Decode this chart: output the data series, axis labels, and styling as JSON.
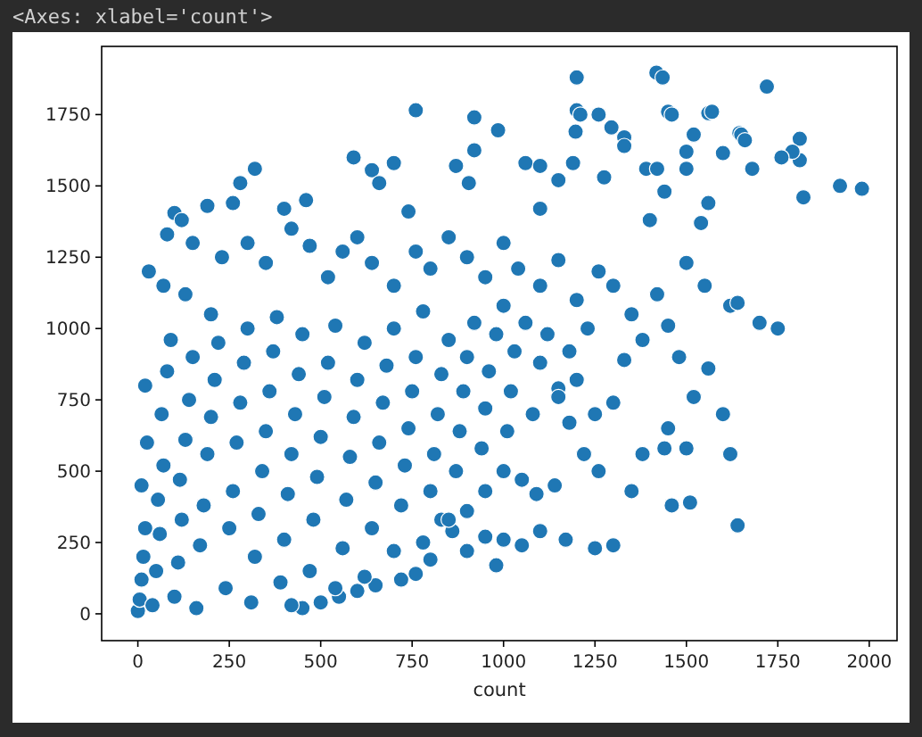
{
  "chart_data": {
    "type": "scatter",
    "annotations": [
      "<Axes: xlabel='count'>"
    ],
    "xlabel": "count",
    "xlim": [
      -99,
      2076
    ],
    "ylim": [
      -94,
      1989
    ],
    "xticks": [
      0,
      250,
      500,
      750,
      1000,
      1250,
      1500,
      1750,
      2000
    ],
    "yticks": [
      0,
      250,
      500,
      750,
      1000,
      1250,
      1500,
      1750
    ],
    "grid": false,
    "marker": "circle",
    "series": [
      {
        "color": "#1f77b4",
        "x": [
          1418,
          1435,
          1200,
          1720,
          760,
          1200,
          1210,
          1260,
          1450,
          1460,
          1560,
          1570,
          920,
          1295,
          1197,
          1645,
          985,
          1330,
          1650,
          1660,
          590,
          1520,
          1330,
          1810,
          920,
          1390,
          1420,
          1500,
          1810,
          1790,
          1760,
          1600,
          1680,
          280,
          320,
          640,
          660,
          700,
          905,
          870,
          1060,
          1100,
          1150,
          1190,
          1275,
          1440,
          1920,
          1980,
          1820,
          1500,
          100,
          190,
          260,
          400,
          460,
          740,
          1400,
          1560,
          1540,
          1100,
          80,
          120,
          150,
          30,
          70,
          130,
          200,
          230,
          300,
          350,
          420,
          470,
          520,
          560,
          600,
          640,
          700,
          760,
          800,
          850,
          900,
          950,
          1000,
          1040,
          1100,
          1150,
          1200,
          1260,
          1300,
          1350,
          1420,
          1500,
          1550,
          1620,
          1700,
          1750,
          1640,
          1450,
          1380,
          1330,
          1480,
          1520,
          1560,
          1600,
          1450,
          1300,
          1250,
          1200,
          1150,
          1380,
          1440,
          1500,
          1620,
          1640,
          1510,
          1460,
          1350,
          1300,
          1250,
          1170,
          1100,
          1050,
          1000,
          950,
          900,
          860,
          830,
          800,
          760,
          720,
          650,
          600,
          550,
          500,
          450,
          420,
          0,
          5,
          10,
          15,
          20,
          10,
          25,
          20,
          40,
          50,
          60,
          55,
          70,
          65,
          80,
          90,
          100,
          110,
          120,
          115,
          130,
          140,
          150,
          160,
          170,
          180,
          190,
          200,
          210,
          220,
          240,
          250,
          260,
          270,
          280,
          290,
          300,
          310,
          320,
          330,
          340,
          350,
          360,
          370,
          380,
          390,
          400,
          410,
          420,
          430,
          440,
          450,
          470,
          480,
          490,
          500,
          510,
          520,
          540,
          560,
          570,
          580,
          590,
          600,
          620,
          640,
          650,
          660,
          670,
          680,
          700,
          720,
          730,
          740,
          750,
          760,
          780,
          800,
          810,
          820,
          830,
          850,
          870,
          880,
          890,
          900,
          920,
          940,
          950,
          960,
          980,
          1000,
          1010,
          1020,
          1030,
          1060,
          1080,
          1100,
          1120,
          1150,
          1180,
          1230,
          1050,
          1000,
          950,
          900,
          850,
          780,
          700,
          620,
          540,
          980,
          1090,
          1140,
          1180,
          1220,
          1260
        ],
        "values": [
          1897,
          1880,
          1880,
          1848,
          1765,
          1765,
          1750,
          1750,
          1760,
          1750,
          1755,
          1760,
          1740,
          1705,
          1690,
          1685,
          1695,
          1670,
          1680,
          1660,
          1600,
          1680,
          1640,
          1665,
          1625,
          1560,
          1560,
          1560,
          1590,
          1620,
          1600,
          1615,
          1560,
          1510,
          1560,
          1555,
          1510,
          1580,
          1510,
          1570,
          1580,
          1570,
          1520,
          1580,
          1530,
          1480,
          1500,
          1490,
          1460,
          1620,
          1405,
          1430,
          1440,
          1420,
          1450,
          1410,
          1380,
          1440,
          1370,
          1420,
          1330,
          1380,
          1300,
          1200,
          1150,
          1120,
          1050,
          1250,
          1300,
          1230,
          1350,
          1290,
          1180,
          1270,
          1320,
          1230,
          1150,
          1270,
          1210,
          1320,
          1250,
          1180,
          1300,
          1210,
          1150,
          1240,
          1100,
          1200,
          1150,
          1050,
          1120,
          1230,
          1150,
          1080,
          1020,
          1000,
          1090,
          1010,
          960,
          890,
          900,
          760,
          860,
          700,
          650,
          740,
          700,
          820,
          790,
          560,
          580,
          580,
          560,
          310,
          390,
          380,
          430,
          240,
          230,
          260,
          290,
          240,
          260,
          270,
          220,
          290,
          330,
          190,
          140,
          120,
          100,
          80,
          60,
          40,
          20,
          30,
          10,
          50,
          120,
          200,
          300,
          450,
          600,
          800,
          30,
          150,
          280,
          400,
          520,
          700,
          850,
          960,
          60,
          180,
          330,
          470,
          610,
          750,
          900,
          20,
          240,
          380,
          560,
          690,
          820,
          950,
          90,
          300,
          430,
          600,
          740,
          880,
          1000,
          40,
          200,
          350,
          500,
          640,
          780,
          920,
          1040,
          110,
          260,
          420,
          560,
          700,
          840,
          980,
          150,
          330,
          480,
          620,
          760,
          880,
          1010,
          230,
          400,
          550,
          690,
          820,
          950,
          300,
          460,
          600,
          740,
          870,
          1000,
          380,
          520,
          650,
          780,
          900,
          1060,
          430,
          560,
          700,
          840,
          960,
          500,
          640,
          780,
          900,
          1020,
          580,
          720,
          850,
          980,
          1080,
          640,
          780,
          920,
          1020,
          700,
          880,
          980,
          760,
          920,
          1000,
          470,
          500,
          430,
          360,
          330,
          250,
          220,
          130,
          90,
          170,
          420,
          450,
          670,
          560,
          500
        ]
      }
    ]
  }
}
